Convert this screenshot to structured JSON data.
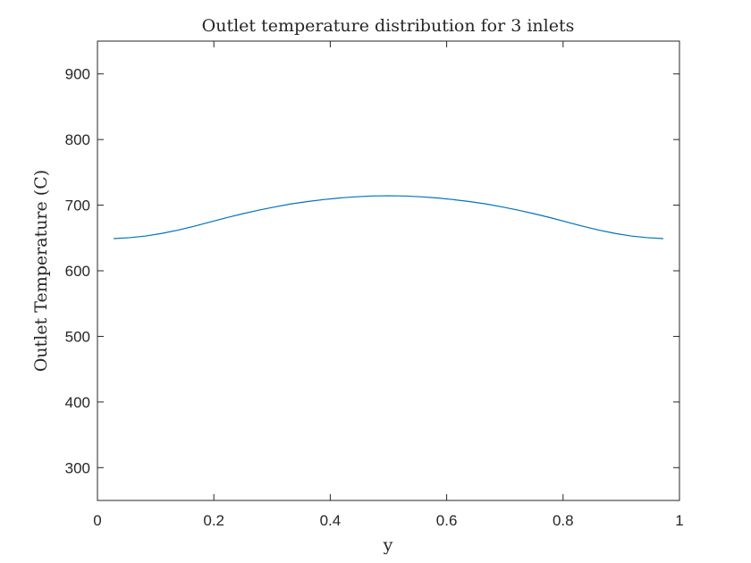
{
  "chart_data": {
    "type": "line",
    "title": "Outlet temperature distribution for 3 inlets",
    "xlabel": "y",
    "ylabel": "Outlet Temperature (C)",
    "xlim": [
      0,
      1
    ],
    "ylim": [
      250,
      950
    ],
    "xticks": [
      0,
      0.2,
      0.4,
      0.6,
      0.8,
      1
    ],
    "xtick_labels": [
      "0",
      "0.2",
      "0.4",
      "0.6",
      "0.8",
      "1"
    ],
    "yticks": [
      300,
      400,
      500,
      600,
      700,
      800,
      900
    ],
    "ytick_labels": [
      "300",
      "400",
      "500",
      "600",
      "700",
      "800",
      "900"
    ],
    "grid": false,
    "series": [
      {
        "color": "#0072bd",
        "x": [
          0.0278,
          0.0556,
          0.0833,
          0.1111,
          0.1389,
          0.1667,
          0.1944,
          0.2222,
          0.25,
          0.2778,
          0.3056,
          0.3333,
          0.3611,
          0.3889,
          0.4167,
          0.4444,
          0.4722,
          0.5,
          0.5278,
          0.5556,
          0.5833,
          0.6111,
          0.6389,
          0.6667,
          0.6944,
          0.7222,
          0.75,
          0.7778,
          0.8056,
          0.8333,
          0.8611,
          0.8889,
          0.9167,
          0.9444,
          0.9722
        ],
        "y": [
          649,
          650.5,
          653,
          657,
          662,
          668,
          674.5,
          681,
          687,
          692.5,
          697.5,
          702,
          705.5,
          708.5,
          711,
          712.8,
          714,
          714.3,
          714,
          712.8,
          711,
          708.5,
          705.5,
          702,
          697.5,
          692.5,
          687,
          681,
          674.5,
          668,
          662,
          657,
          653,
          650.5,
          649
        ]
      }
    ]
  }
}
